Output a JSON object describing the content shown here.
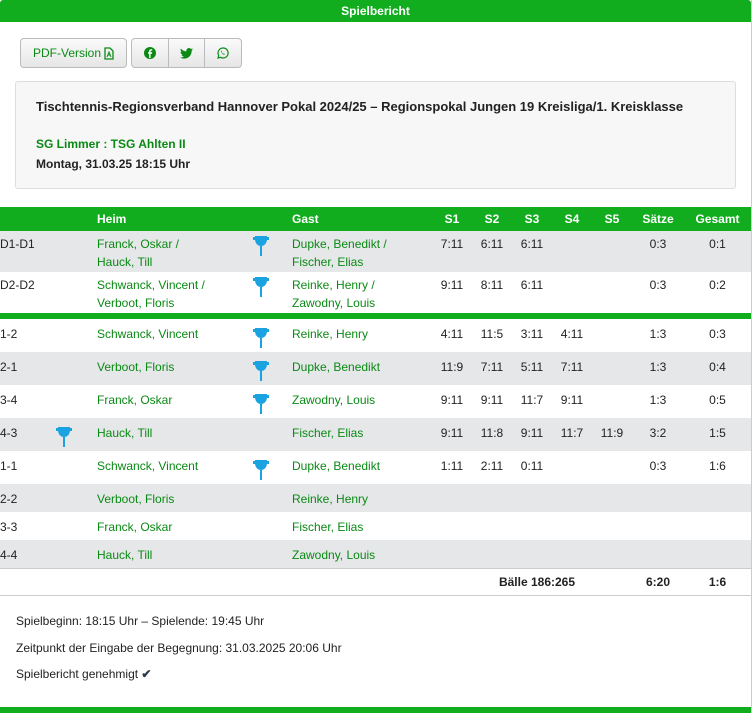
{
  "header": {
    "title": "Spielbericht"
  },
  "toolbar": {
    "pdf_label": "PDF-Version",
    "pdf_icon": "file-pdf-icon",
    "share_icons": [
      "facebook-icon",
      "twitter-icon",
      "whatsapp-icon"
    ]
  },
  "match": {
    "competition": "Tischtennis-Regionsverband Hannover Pokal 2024/25 – Regionspokal Jungen 19 Kreisliga/1. Kreisklasse",
    "teams": "SG Limmer : TSG Ahlten II",
    "date": "Montag, 31.03.25 18:15 Uhr"
  },
  "table": {
    "headers": {
      "nr": "",
      "heim": "Heim",
      "gast": "Gast",
      "s1": "S1",
      "s2": "S2",
      "s3": "S3",
      "s4": "S4",
      "s5": "S5",
      "saetze": "Sätze",
      "gesamt": "Gesamt"
    },
    "doubles": [
      {
        "nr": "D1-D1",
        "heim": [
          "Franck, Oskar /",
          "Hauck, Till"
        ],
        "gast": [
          "Dupke, Benedikt /",
          "Fischer, Elias"
        ],
        "winner": "guest",
        "sets": [
          "7:11",
          "6:11",
          "6:11",
          "",
          ""
        ],
        "saetze": "0:3",
        "gesamt": "0:1"
      },
      {
        "nr": "D2-D2",
        "heim": [
          "Schwanck, Vincent /",
          "Verboot, Floris"
        ],
        "gast": [
          "Reinke, Henry /",
          "Zawodny, Louis"
        ],
        "winner": "guest",
        "sets": [
          "9:11",
          "8:11",
          "6:11",
          "",
          ""
        ],
        "saetze": "0:3",
        "gesamt": "0:2"
      }
    ],
    "singles": [
      {
        "nr": "1-2",
        "heim": "Schwanck, Vincent",
        "gast": "Reinke, Henry",
        "winner": "guest",
        "sets": [
          "4:11",
          "11:5",
          "3:11",
          "4:11",
          ""
        ],
        "saetze": "1:3",
        "gesamt": "0:3"
      },
      {
        "nr": "2-1",
        "heim": "Verboot, Floris",
        "gast": "Dupke, Benedikt",
        "winner": "guest",
        "sets": [
          "11:9",
          "7:11",
          "5:11",
          "7:11",
          ""
        ],
        "saetze": "1:3",
        "gesamt": "0:4"
      },
      {
        "nr": "3-4",
        "heim": "Franck, Oskar",
        "gast": "Zawodny, Louis",
        "winner": "guest",
        "sets": [
          "9:11",
          "9:11",
          "11:7",
          "9:11",
          ""
        ],
        "saetze": "1:3",
        "gesamt": "0:5"
      },
      {
        "nr": "4-3",
        "heim": "Hauck, Till",
        "gast": "Fischer, Elias",
        "winner": "home",
        "sets": [
          "9:11",
          "11:8",
          "9:11",
          "11:7",
          "11:9"
        ],
        "saetze": "3:2",
        "gesamt": "1:5"
      },
      {
        "nr": "1-1",
        "heim": "Schwanck, Vincent",
        "gast": "Dupke, Benedikt",
        "winner": "guest",
        "sets": [
          "1:11",
          "2:11",
          "0:11",
          "",
          ""
        ],
        "saetze": "0:3",
        "gesamt": "1:6"
      },
      {
        "nr": "2-2",
        "heim": "Verboot, Floris",
        "gast": "Reinke, Henry",
        "winner": "",
        "sets": [
          "",
          "",
          "",
          "",
          ""
        ],
        "saetze": "",
        "gesamt": ""
      },
      {
        "nr": "3-3",
        "heim": "Franck, Oskar",
        "gast": "Fischer, Elias",
        "winner": "",
        "sets": [
          "",
          "",
          "",
          "",
          ""
        ],
        "saetze": "",
        "gesamt": ""
      },
      {
        "nr": "4-4",
        "heim": "Hauck, Till",
        "gast": "Zawodny, Louis",
        "winner": "",
        "sets": [
          "",
          "",
          "",
          "",
          ""
        ],
        "saetze": "",
        "gesamt": ""
      }
    ],
    "totals": {
      "baelle": "Bälle 186:265",
      "saetze": "6:20",
      "gesamt": "1:6"
    }
  },
  "footer": {
    "times": "Spielbeginn: 18:15 Uhr – Spielende: 19:45 Uhr",
    "entry": "Zeitpunkt der Eingabe der Begegnung: 31.03.2025 20:06 Uhr",
    "approved": "Spielbericht genehmigt"
  },
  "colors": {
    "accent": "#12ad1f",
    "link": "#0a8a14",
    "trophy": "#1aa3e0",
    "row_alt": "#e5e7e8"
  }
}
